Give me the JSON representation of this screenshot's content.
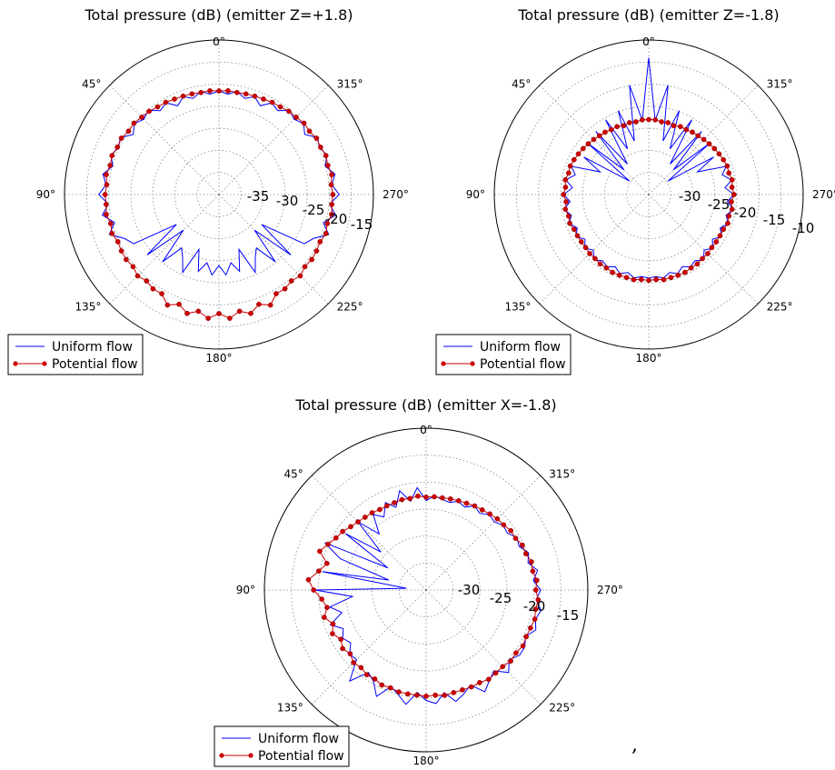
{
  "chart_data": [
    {
      "type": "polar_line",
      "title": "Total pressure (dB) (emitter Z=+1.8)",
      "angle_ticks": [
        "0°",
        "45°",
        "90°",
        "135°",
        "180°",
        "225°",
        "270°",
        "315°"
      ],
      "radial_ticks": [
        "-35",
        "-30",
        "-25",
        "-20",
        "-15"
      ],
      "rlim": [
        -40,
        -13
      ],
      "grid": true,
      "legend": "bottom-left",
      "series": [
        {
          "name": "Uniform flow",
          "color": "#0000ff",
          "marker": "none",
          "angles": [
            0,
            5,
            10,
            15,
            20,
            25,
            30,
            35,
            40,
            45,
            50,
            55,
            60,
            65,
            70,
            75,
            80,
            85,
            90,
            95,
            100,
            105,
            110,
            115,
            120,
            125,
            130,
            135,
            140,
            145,
            150,
            155,
            160,
            165,
            170,
            175,
            180,
            185,
            190,
            195,
            200,
            205,
            210,
            215,
            220,
            225,
            230,
            235,
            240,
            245,
            250,
            255,
            260,
            265,
            270,
            275,
            280,
            285,
            290,
            295,
            300,
            305,
            310,
            315,
            320,
            325,
            330,
            335,
            340,
            345,
            350,
            355
          ],
          "values": [
            -21.9,
            -22.4,
            -21.7,
            -22.6,
            -21.8,
            -22.9,
            -21.5,
            -22.1,
            -20.8,
            -21.4,
            -20.7,
            -21.7,
            -20.1,
            -20.6,
            -19.9,
            -20.8,
            -19.4,
            -20.2,
            -19.0,
            -20.6,
            -19.3,
            -21.1,
            -19.6,
            -21.8,
            -22.8,
            -30.9,
            -23.6,
            -31.2,
            -24.7,
            -28.6,
            -27.3,
            -25.0,
            -29.8,
            -26.1,
            -27.9,
            -25.9,
            -27.6,
            -25.9,
            -27.9,
            -26.1,
            -29.8,
            -25.0,
            -27.3,
            -28.6,
            -24.7,
            -31.2,
            -23.6,
            -30.9,
            -22.8,
            -21.8,
            -19.6,
            -21.1,
            -19.3,
            -20.6,
            -19.0,
            -20.2,
            -19.4,
            -20.8,
            -19.9,
            -20.6,
            -20.1,
            -21.7,
            -20.7,
            -21.4,
            -20.8,
            -22.1,
            -21.5,
            -22.9,
            -21.8,
            -22.6,
            -21.7,
            -22.4
          ]
        },
        {
          "name": "Potential flow",
          "color": "#cc0000",
          "marker": "dot",
          "angles": [
            0,
            5,
            10,
            15,
            20,
            25,
            30,
            35,
            40,
            45,
            50,
            55,
            60,
            65,
            70,
            75,
            80,
            85,
            90,
            95,
            100,
            105,
            110,
            115,
            120,
            125,
            130,
            135,
            140,
            145,
            150,
            155,
            160,
            165,
            170,
            175,
            180,
            185,
            190,
            195,
            200,
            205,
            210,
            215,
            220,
            225,
            230,
            235,
            240,
            245,
            250,
            255,
            260,
            265,
            270,
            275,
            280,
            285,
            290,
            295,
            300,
            305,
            310,
            315,
            320,
            325,
            330,
            335,
            340,
            345,
            350,
            355
          ],
          "values": [
            -21.9,
            -21.8,
            -21.9,
            -21.8,
            -21.7,
            -21.6,
            -21.4,
            -21.3,
            -21.0,
            -20.9,
            -20.6,
            -20.7,
            -20.3,
            -20.4,
            -20.1,
            -20.3,
            -20.0,
            -20.3,
            -20.1,
            -20.2,
            -20.0,
            -20.4,
            -20.1,
            -20.5,
            -20.3,
            -20.2,
            -20.4,
            -19.9,
            -20.3,
            -19.9,
            -20.0,
            -18.7,
            -19.6,
            -18.5,
            -19.3,
            -18.3,
            -19.2,
            -18.3,
            -19.3,
            -18.5,
            -19.6,
            -18.7,
            -20.0,
            -19.9,
            -20.3,
            -19.9,
            -20.4,
            -20.2,
            -20.3,
            -20.5,
            -20.1,
            -20.4,
            -20.0,
            -20.2,
            -20.1,
            -20.3,
            -20.0,
            -20.3,
            -20.1,
            -20.4,
            -20.3,
            -20.7,
            -20.6,
            -20.9,
            -21.0,
            -21.3,
            -21.4,
            -21.6,
            -21.7,
            -21.8,
            -21.9,
            -21.8
          ]
        }
      ]
    },
    {
      "type": "polar_line",
      "title": "Total pressure (dB) (emitter Z=-1.8)",
      "angle_ticks": [
        "0°",
        "45°",
        "90°",
        "135°",
        "180°",
        "225°",
        "270°",
        "315°"
      ],
      "radial_ticks": [
        "-30",
        "-25",
        "-20",
        "-15",
        "-10"
      ],
      "rlim": [
        -35,
        -8
      ],
      "grid": true,
      "legend": "bottom-left",
      "series": [
        {
          "name": "Uniform flow",
          "color": "#0000ff",
          "marker": "none",
          "angles": [
            0,
            5,
            10,
            15,
            20,
            25,
            30,
            35,
            40,
            45,
            50,
            55,
            60,
            65,
            70,
            75,
            80,
            85,
            90,
            95,
            100,
            105,
            110,
            115,
            120,
            125,
            130,
            135,
            140,
            145,
            150,
            155,
            160,
            165,
            170,
            175,
            180,
            185,
            190,
            195,
            200,
            205,
            210,
            215,
            220,
            225,
            230,
            235,
            240,
            245,
            250,
            255,
            260,
            265,
            270,
            275,
            280,
            285,
            290,
            295,
            300,
            305,
            310,
            315,
            320,
            325,
            330,
            335,
            340,
            345,
            350,
            355
          ],
          "values": [
            -11.1,
            -22.0,
            -15.6,
            -25.3,
            -19.4,
            -26.2,
            -19.9,
            -28.5,
            -20.6,
            -28.9,
            -21.1,
            -30.9,
            -21.9,
            -25.6,
            -20.6,
            -21.7,
            -20.3,
            -21.6,
            -20.1,
            -21.2,
            -20.0,
            -21.0,
            -20.2,
            -21.2,
            -20.3,
            -21.4,
            -20.4,
            -21.3,
            -20.1,
            -20.9,
            -20.4,
            -21.1,
            -20.3,
            -20.9,
            -20.2,
            -20.6,
            -20.4,
            -20.6,
            -20.2,
            -20.9,
            -20.3,
            -21.1,
            -20.4,
            -20.9,
            -20.1,
            -21.3,
            -20.4,
            -21.4,
            -20.3,
            -21.2,
            -20.2,
            -21.0,
            -20.0,
            -21.2,
            -20.1,
            -21.6,
            -20.3,
            -21.7,
            -20.6,
            -25.6,
            -21.9,
            -30.9,
            -21.1,
            -28.9,
            -20.6,
            -28.5,
            -19.9,
            -26.2,
            -19.4,
            -25.3,
            -15.6,
            -22.0
          ]
        },
        {
          "name": "Potential flow",
          "color": "#cc0000",
          "marker": "dot",
          "angles": [
            0,
            5,
            10,
            15,
            20,
            25,
            30,
            35,
            40,
            45,
            50,
            55,
            60,
            65,
            70,
            75,
            80,
            85,
            90,
            95,
            100,
            105,
            110,
            115,
            120,
            125,
            130,
            135,
            140,
            145,
            150,
            155,
            160,
            165,
            170,
            175,
            180,
            185,
            190,
            195,
            200,
            205,
            210,
            215,
            220,
            225,
            230,
            235,
            240,
            245,
            250,
            255,
            260,
            265,
            270,
            275,
            280,
            285,
            290,
            295,
            300,
            305,
            310,
            315,
            320,
            325,
            330,
            335,
            340,
            345,
            350,
            355
          ],
          "values": [
            -21.9,
            -21.9,
            -22.1,
            -22.0,
            -22.2,
            -21.9,
            -21.9,
            -21.7,
            -21.6,
            -21.4,
            -21.2,
            -21.0,
            -20.8,
            -20.6,
            -20.4,
            -20.5,
            -20.2,
            -20.4,
            -20.1,
            -20.5,
            -20.2,
            -20.5,
            -20.3,
            -20.6,
            -20.6,
            -20.6,
            -20.6,
            -20.4,
            -20.4,
            -20.2,
            -20.2,
            -20.0,
            -20.0,
            -20.0,
            -19.9,
            -20.1,
            -20.0,
            -20.1,
            -19.9,
            -20.0,
            -20.0,
            -20.0,
            -20.2,
            -20.2,
            -20.4,
            -20.4,
            -20.6,
            -20.6,
            -20.6,
            -20.6,
            -20.3,
            -20.5,
            -20.2,
            -20.5,
            -20.1,
            -20.4,
            -20.2,
            -20.5,
            -20.4,
            -20.6,
            -20.8,
            -21.0,
            -21.2,
            -21.4,
            -21.6,
            -21.7,
            -21.9,
            -21.9,
            -22.2,
            -22.0,
            -22.1,
            -21.9
          ]
        }
      ]
    },
    {
      "type": "polar_line",
      "title": "Total pressure (dB) (emitter X=-1.8)",
      "angle_ticks": [
        "0°",
        "45°",
        "90°",
        "135°",
        "180°",
        "225°",
        "270°",
        "315°"
      ],
      "radial_ticks": [
        "-30",
        "-25",
        "-20",
        "-15"
      ],
      "rlim": [
        -35,
        -12
      ],
      "grid": true,
      "legend": "bottom-left",
      "series": [
        {
          "name": "Uniform flow",
          "color": "#0000ff",
          "marker": "none",
          "angles": [
            0,
            5,
            10,
            15,
            20,
            25,
            30,
            35,
            40,
            45,
            50,
            55,
            60,
            65,
            70,
            75,
            80,
            85,
            90,
            95,
            100,
            105,
            110,
            115,
            120,
            125,
            130,
            135,
            140,
            145,
            150,
            155,
            160,
            165,
            170,
            175,
            180,
            185,
            190,
            195,
            200,
            205,
            210,
            215,
            220,
            225,
            230,
            235,
            240,
            245,
            250,
            255,
            260,
            265,
            270,
            275,
            280,
            285,
            290,
            295,
            300,
            305,
            310,
            315,
            320,
            325,
            330,
            335,
            340,
            345,
            350,
            355
          ],
          "values": [
            -22.3,
            -20.4,
            -22.2,
            -20.4,
            -22.5,
            -21.3,
            -23.0,
            -21.9,
            -24.6,
            -21.3,
            -26.6,
            -21.0,
            -28.7,
            -19.1,
            -22.0,
            -29.5,
            -20.0,
            -32.2,
            -19.2,
            -24.5,
            -21.1,
            -22.6,
            -20.5,
            -22.0,
            -21.3,
            -21.9,
            -20.8,
            -21.0,
            -18.1,
            -20.7,
            -20.0,
            -18.3,
            -20.4,
            -19.6,
            -18.5,
            -20.4,
            -19.3,
            -18.8,
            -20.2,
            -18.6,
            -19.3,
            -20.1,
            -18.3,
            -19.3,
            -20.0,
            -18.4,
            -19.6,
            -18.8,
            -18.8,
            -19.4,
            -18.4,
            -18.9,
            -18.4,
            -19.3,
            -18.7,
            -19.7,
            -18.9,
            -20.0,
            -19.5,
            -20.4,
            -20.1,
            -20.9,
            -20.7,
            -21.3,
            -21.0,
            -21.7,
            -21.2,
            -22.0,
            -21.6,
            -22.1,
            -21.9,
            -21.6
          ]
        },
        {
          "name": "Potential flow",
          "color": "#cc0000",
          "marker": "dot",
          "angles": [
            0,
            5,
            10,
            15,
            20,
            25,
            30,
            35,
            40,
            45,
            50,
            55,
            60,
            65,
            70,
            75,
            80,
            85,
            90,
            95,
            100,
            105,
            110,
            115,
            120,
            125,
            130,
            135,
            140,
            145,
            150,
            155,
            160,
            165,
            170,
            175,
            180,
            185,
            190,
            195,
            200,
            205,
            210,
            215,
            220,
            225,
            230,
            235,
            240,
            245,
            250,
            255,
            260,
            265,
            270,
            275,
            280,
            285,
            290,
            295,
            300,
            305,
            310,
            315,
            320,
            325,
            330,
            335,
            340,
            345,
            350,
            355
          ],
          "values": [
            -21.8,
            -21.6,
            -21.8,
            -21.7,
            -21.8,
            -21.8,
            -21.8,
            -21.6,
            -21.5,
            -21.3,
            -21.0,
            -20.5,
            -20.2,
            -19.6,
            -18.9,
            -20.4,
            -19.5,
            -18.2,
            -19.0,
            -20.1,
            -20.7,
            -20.0,
            -20.9,
            -20.3,
            -21.0,
            -20.5,
            -20.9,
            -20.4,
            -20.6,
            -20.3,
            -20.4,
            -20.1,
            -20.2,
            -20.0,
            -20.0,
            -20.0,
            -19.9,
            -20.0,
            -19.8,
            -19.9,
            -19.9,
            -19.8,
            -19.8,
            -19.5,
            -19.6,
            -19.6,
            -19.3,
            -19.4,
            -19.1,
            -19.3,
            -19.2,
            -19.0,
            -19.2,
            -19.0,
            -19.4,
            -19.2,
            -19.6,
            -19.5,
            -19.9,
            -19.9,
            -20.3,
            -20.3,
            -20.6,
            -20.7,
            -20.9,
            -21.1,
            -21.2,
            -21.4,
            -21.5,
            -21.6,
            -21.7,
            -21.7
          ]
        }
      ]
    }
  ],
  "stray_mark": ","
}
